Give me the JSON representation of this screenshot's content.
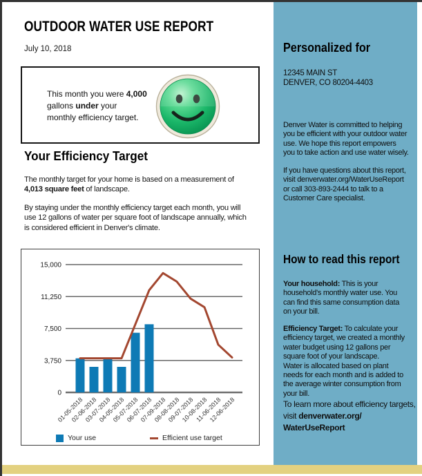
{
  "page": {
    "title": "OUTDOOR WATER USE REPORT",
    "date": "July 10, 2018"
  },
  "summary_box": {
    "smiley_icon": "green-happy-face",
    "message": [
      {
        "t": "This month you were ",
        "b": false
      },
      {
        "t": "4,000",
        "b": true
      },
      {
        "br": true
      },
      {
        "t": "gallons ",
        "b": false
      },
      {
        "t": "under",
        "b": true
      },
      {
        "t": " your",
        "b": false
      },
      {
        "br": true
      },
      {
        "t": "monthly efficiency target.",
        "b": false
      }
    ]
  },
  "efficiency_section": {
    "heading": "Your Efficiency Target",
    "para1": [
      {
        "t": "The monthly target for your home is based on a measurement of",
        "b": false
      },
      {
        "br": true
      },
      {
        "t": "4,013 square feet",
        "b": true
      },
      {
        "t": " of landscape.",
        "b": false
      }
    ],
    "para2": [
      {
        "t": "By staying under the monthly efficiency target each month, you will",
        "b": false
      },
      {
        "br": true
      },
      {
        "t": "use 12 gallons of water per square foot of landscape annually, which",
        "b": false
      },
      {
        "br": true
      },
      {
        "t": "is considered efficient in Denver's climate.",
        "b": false
      }
    ]
  },
  "chart_data": {
    "type": "bar",
    "title": "",
    "xlabel": "",
    "ylabel": "",
    "categories": [
      "01-05-2018",
      "02-06-2018",
      "03-07-2018",
      "04-05-2018",
      "05-07-2018",
      "06-07-2018",
      "07-09-2018",
      "08-08-2018",
      "09-07-2018",
      "10-08-2018",
      "11-06-2018",
      "12-06-2018"
    ],
    "series": [
      {
        "name": "Your use",
        "type": "bar",
        "color": "#0E7AB5",
        "values": [
          4000,
          3000,
          3900,
          3000,
          7000,
          8000,
          null,
          null,
          null,
          null,
          null,
          null
        ]
      },
      {
        "name": "Efficient use target",
        "type": "line",
        "color": "#A34730",
        "values": [
          4000,
          4000,
          4000,
          4000,
          8000,
          12000,
          14000,
          13000,
          11000,
          10000,
          5600,
          4100
        ]
      }
    ],
    "ylim": [
      0,
      15000
    ],
    "yticks": [
      0,
      3750,
      7500,
      11250,
      15000
    ],
    "ytick_labels": [
      "0",
      "3,750",
      "7,500",
      "11,250",
      "15,000"
    ],
    "grid": true,
    "legend_position": "bottom"
  },
  "sidebar": {
    "personalized_heading": "Personalized for",
    "address": [
      {
        "t": "12345 MAIN ST",
        "b": false
      },
      {
        "br": true
      },
      {
        "t": "DENVER, CO 80204-4403",
        "b": false
      }
    ],
    "para1": [
      {
        "t": "Denver Water is committed to helping",
        "b": false
      },
      {
        "br": true
      },
      {
        "t": "you be efficient with your outdoor water",
        "b": false
      },
      {
        "br": true
      },
      {
        "t": "use. We hope this report empowers",
        "b": false
      },
      {
        "br": true
      },
      {
        "t": "you to take action and use water wisely.",
        "b": false
      }
    ],
    "para2": [
      {
        "t": "If you have questions about this report,",
        "b": false
      },
      {
        "br": true
      },
      {
        "t": "visit denverwater.org/WaterUseReport",
        "b": false
      },
      {
        "br": true
      },
      {
        "t": "or call 303-893-2444 to talk to a",
        "b": false
      },
      {
        "br": true
      },
      {
        "t": "Customer Care specialist.",
        "b": false
      }
    ],
    "how_heading": "How to read this report",
    "household_para": [
      {
        "t": "Your household:",
        "b": true
      },
      {
        "t": " This is your",
        "b": false
      },
      {
        "br": true
      },
      {
        "t": "household's monthly water use. You",
        "b": false
      },
      {
        "br": true
      },
      {
        "t": "can find this same consumption data",
        "b": false
      },
      {
        "br": true
      },
      {
        "t": "on your bill.",
        "b": false
      }
    ],
    "target_para": [
      {
        "t": "Efficiency Target:",
        "b": true
      },
      {
        "t": " To calculate your",
        "b": false
      },
      {
        "br": true
      },
      {
        "t": "efficiency target, we created a monthly",
        "b": false
      },
      {
        "br": true
      },
      {
        "t": "water budget using 12 gallons per",
        "b": false
      },
      {
        "br": true
      },
      {
        "t": "square foot of your landscape.",
        "b": false
      },
      {
        "br": true
      },
      {
        "t": "Water is allocated based on plant",
        "b": false
      },
      {
        "br": true
      },
      {
        "t": "needs for each month and is added to",
        "b": false
      },
      {
        "br": true
      },
      {
        "t": "the average winter consumption from",
        "b": false
      },
      {
        "br": true
      },
      {
        "t": "your bill.",
        "b": false
      }
    ],
    "learn_more": [
      {
        "t": "To learn more about efficiency targets,",
        "b": false
      },
      {
        "br": true
      },
      {
        "t": " visit ",
        "b": false
      },
      {
        "t": "denverwater.org/",
        "b": true
      },
      {
        "br": true
      },
      {
        "t": "WaterUseReport",
        "b": true
      }
    ]
  },
  "colors": {
    "sidebar_bg": "#6FADC6",
    "bar_blue": "#0E7AB5",
    "target_line": "#A34730",
    "footer_band": "#E3D180",
    "page_edge": "#333333"
  }
}
